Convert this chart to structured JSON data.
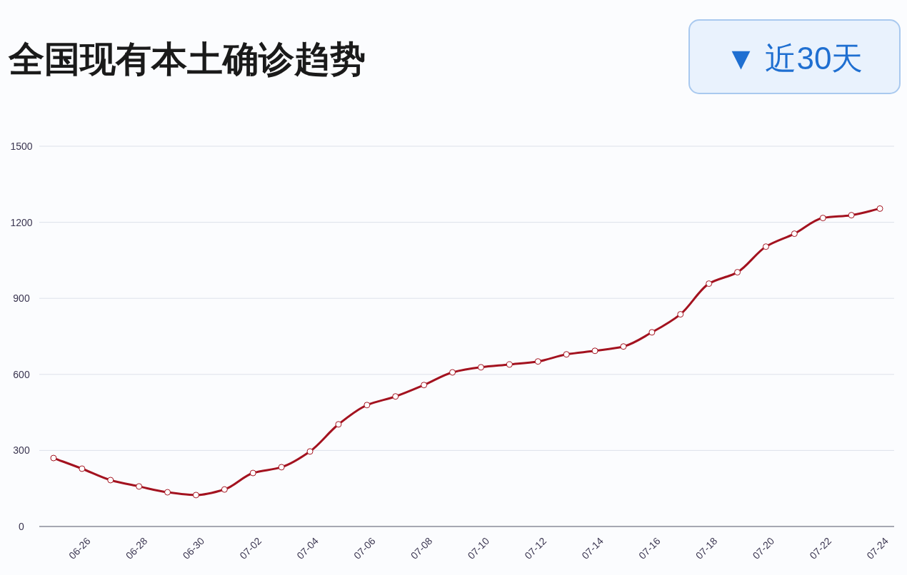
{
  "chart_data": {
    "type": "line",
    "title": "全国现有本土确诊趋势",
    "annotations": [
      "▼ 近30天"
    ],
    "categories": [
      null,
      "06-26",
      null,
      "06-28",
      null,
      "06-30",
      null,
      "07-02",
      null,
      "07-04",
      null,
      "07-06",
      null,
      "07-08",
      null,
      "07-10",
      null,
      "07-12",
      null,
      "07-14",
      null,
      "07-16",
      null,
      "07-18",
      null,
      "07-20",
      null,
      "07-22",
      null,
      "07-24"
    ],
    "series": [
      {
        "color": "#a3121f",
        "values": [
          270,
          228,
          183,
          158,
          135,
          124,
          146,
          211,
          234,
          296,
          403,
          479,
          513,
          558,
          608,
          628,
          639,
          651,
          679,
          693,
          710,
          766,
          837,
          958,
          1003,
          1104,
          1155,
          1217,
          1228,
          1254
        ]
      }
    ],
    "ylim": [
      0,
      1500
    ],
    "yticks": [
      0,
      300,
      600,
      900,
      1200,
      1500
    ],
    "grid": "y",
    "marker": "circle",
    "line_style": "solid"
  }
}
